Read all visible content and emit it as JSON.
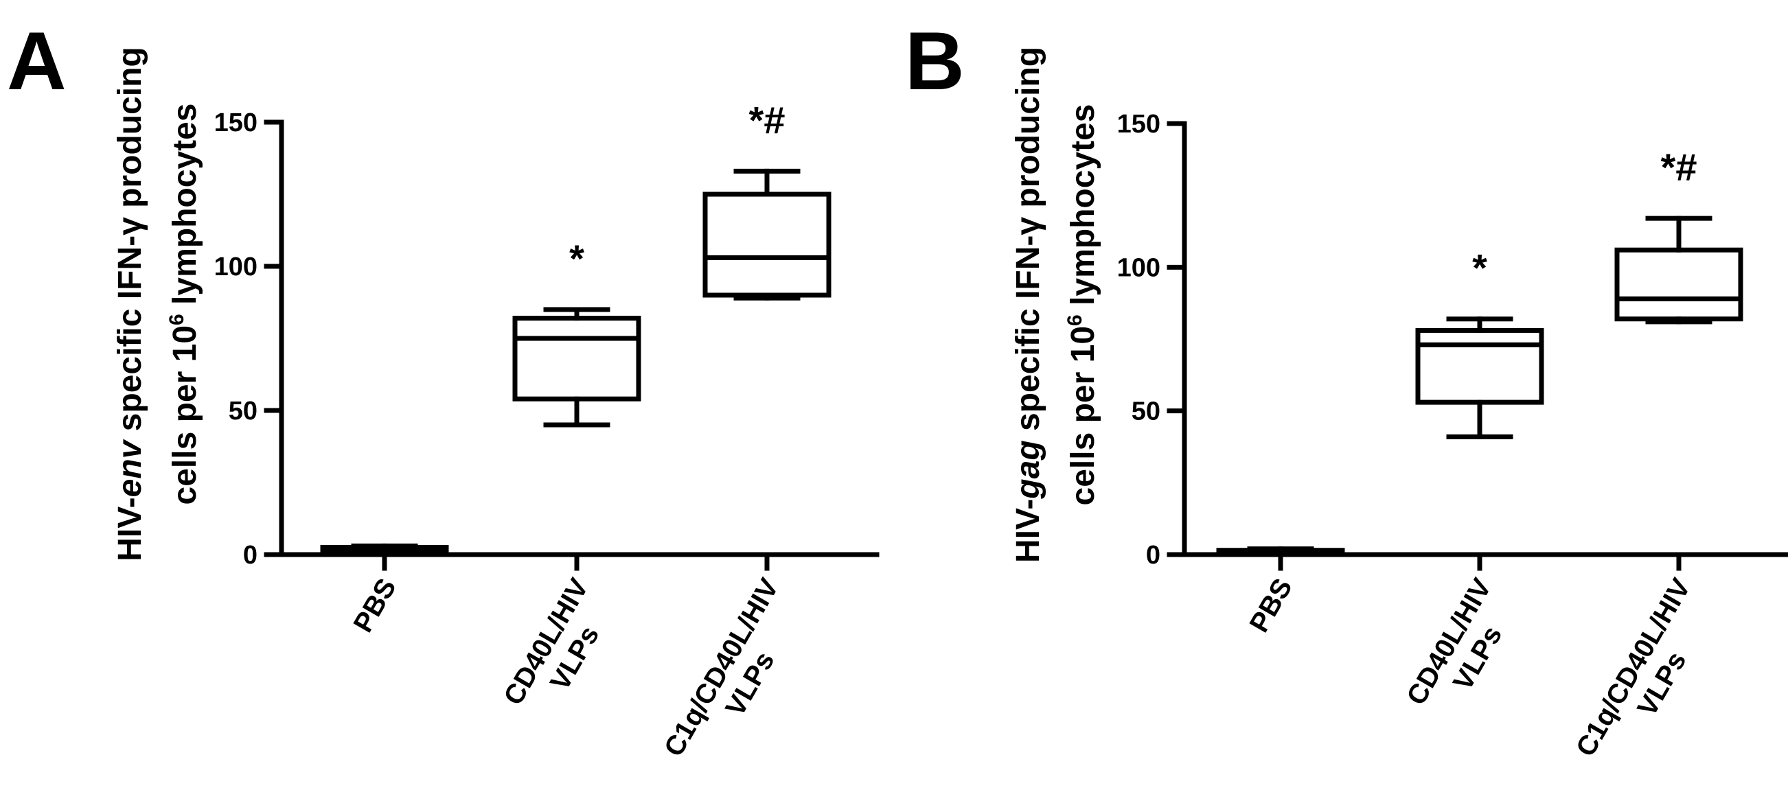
{
  "chart_data": [
    {
      "type": "box",
      "panel": "A",
      "ylabel_line1_pre": "HIV-",
      "ylabel_line1_em": "env",
      "ylabel_line1_post": " specific IFN-γ producing",
      "ylabel_line2_pre": "cells per 10",
      "ylabel_line2_sup": "6",
      "ylabel_line2_post": " lymphocytes",
      "ylim": [
        0,
        150
      ],
      "yticks": [
        0,
        50,
        100,
        150
      ],
      "categories": [
        [
          "PBS"
        ],
        [
          "CD40L/HIV",
          "VLPs"
        ],
        [
          "C1q/CD40L/HIV",
          "VLPs"
        ]
      ],
      "boxes": [
        {
          "min": 0,
          "q1": 1,
          "median": 2,
          "q3": 2.5,
          "max": 3,
          "sig": ""
        },
        {
          "min": 45,
          "q1": 54,
          "median": 75,
          "q3": 82,
          "max": 85,
          "sig": "*"
        },
        {
          "min": 89,
          "q1": 90,
          "median": 103,
          "q3": 125,
          "max": 133,
          "sig": "*#"
        }
      ]
    },
    {
      "type": "box",
      "panel": "B",
      "ylabel_line1_pre": "HIV-",
      "ylabel_line1_em": "gag",
      "ylabel_line1_post": " specific IFN-γ producing",
      "ylabel_line2_pre": "cells per 10",
      "ylabel_line2_sup": "6",
      "ylabel_line2_post": " lymphocytes",
      "ylim": [
        0,
        150
      ],
      "yticks": [
        0,
        50,
        100,
        150
      ],
      "categories": [
        [
          "PBS"
        ],
        [
          "CD40L/HIV",
          "VLPs"
        ],
        [
          "C1q/CD40L/HIV",
          "VLPs"
        ]
      ],
      "boxes": [
        {
          "min": 0,
          "q1": 0.5,
          "median": 1,
          "q3": 1.5,
          "max": 2,
          "sig": ""
        },
        {
          "min": 41,
          "q1": 53,
          "median": 73,
          "q3": 78,
          "max": 82,
          "sig": "*"
        },
        {
          "min": 81,
          "q1": 82,
          "median": 89,
          "q3": 106,
          "max": 117,
          "sig": "*#"
        }
      ]
    }
  ]
}
